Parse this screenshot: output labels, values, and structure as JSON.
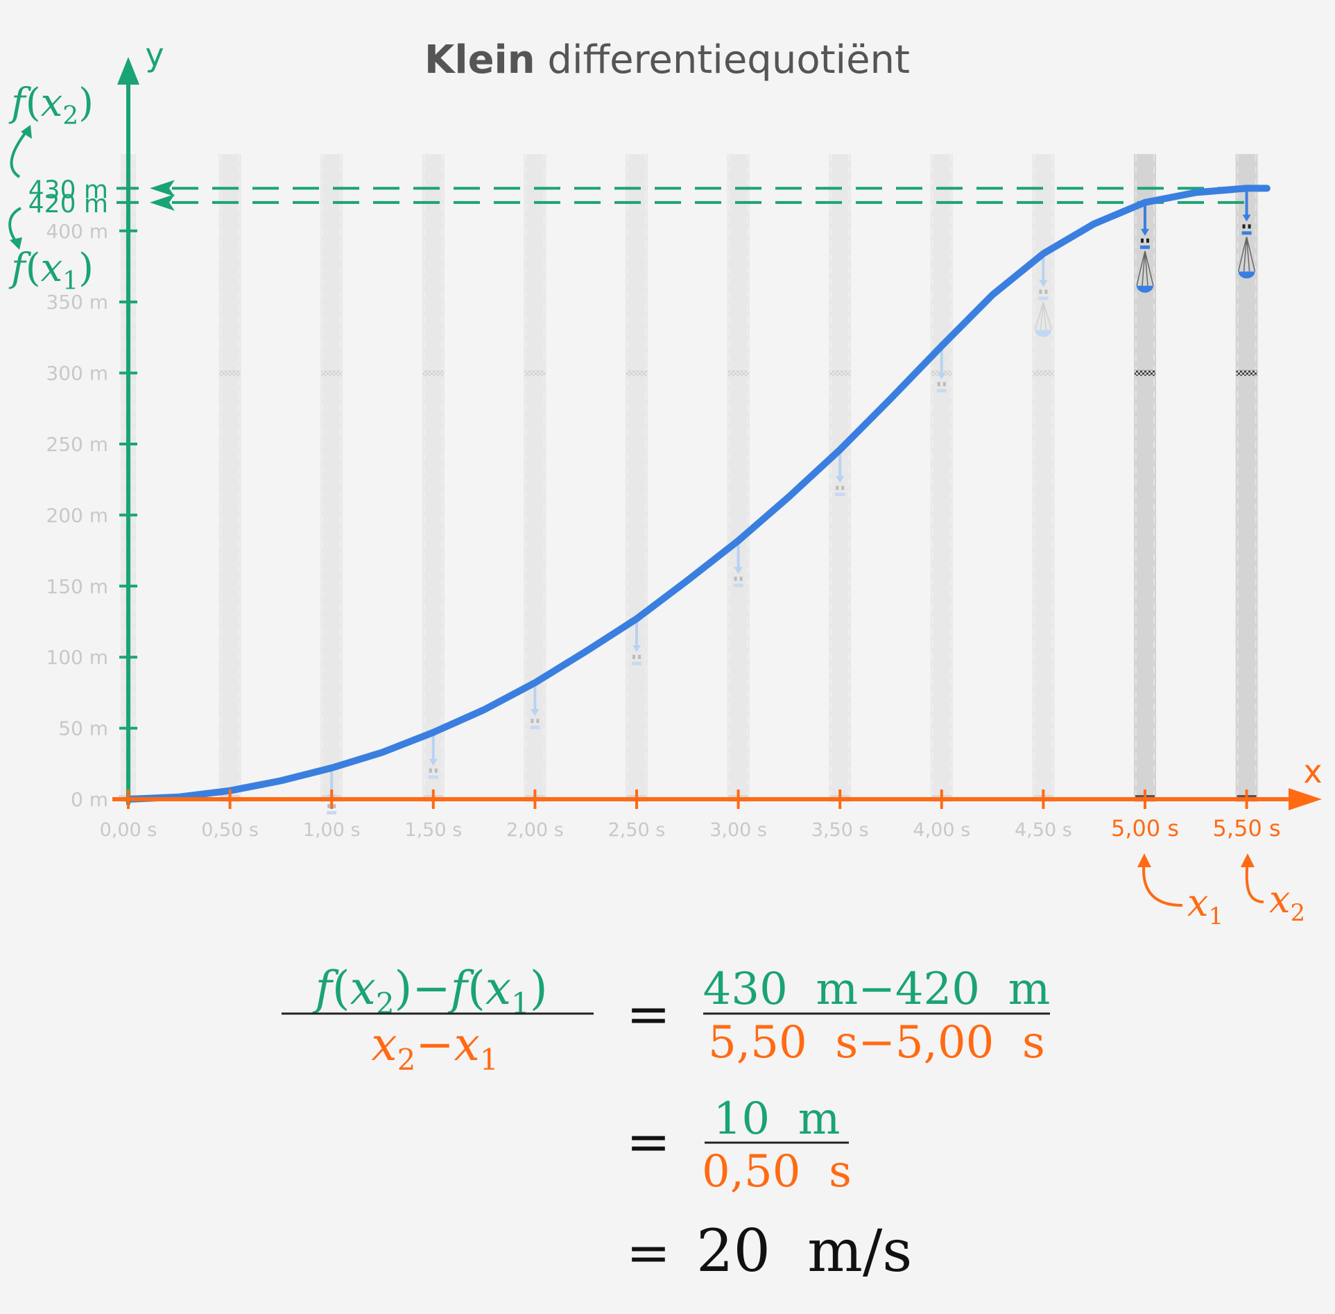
{
  "title": {
    "bold": "Klein",
    "rest": " differentiequotiënt"
  },
  "colors": {
    "green": "#1aa374",
    "orange": "#ff6a13",
    "blue": "#3a7fe0",
    "faded": "#c8c8c8",
    "black": "#111111"
  },
  "axes": {
    "x_label": "x",
    "y_label": "y"
  },
  "chart_data": {
    "type": "line",
    "title": "Klein differentiequotiënt",
    "xlabel": "x",
    "ylabel": "y",
    "xlim": [
      0,
      5.6
    ],
    "ylim": [
      0,
      430
    ],
    "x_ticks": [
      0,
      0.5,
      1.0,
      1.5,
      2.0,
      2.5,
      3.0,
      3.5,
      4.0,
      4.5,
      5.0,
      5.5
    ],
    "x_tick_labels": [
      "0,00 s",
      "0,50 s",
      "1,00 s",
      "1,50 s",
      "2,00 s",
      "2,50 s",
      "3,00 s",
      "3,50 s",
      "4,00 s",
      "4,50 s",
      "5,00 s",
      "5,50 s"
    ],
    "highlighted_x_ticks": [
      5.0,
      5.5
    ],
    "y_ticks": [
      0,
      50,
      100,
      150,
      200,
      250,
      300,
      350,
      400
    ],
    "y_tick_labels": [
      "0 m",
      "50 m",
      "100 m",
      "150 m",
      "200 m",
      "250 m",
      "300 m",
      "350 m",
      "400 m"
    ],
    "highlighted_y_values": [
      420,
      430
    ],
    "highlighted_y_labels": [
      "420 m",
      "430 m"
    ],
    "grid": false,
    "series": [
      {
        "x": [
          0,
          0.25,
          0.5,
          0.75,
          1.0,
          1.25,
          1.5,
          1.75,
          2.0,
          2.25,
          2.5,
          2.75,
          3.0,
          3.25,
          3.5,
          3.75,
          4.0,
          4.25,
          4.5,
          4.75,
          5.0,
          5.25,
          5.5,
          5.6
        ],
        "y": [
          0,
          1.6,
          6,
          13,
          22,
          33,
          47,
          63,
          82,
          104,
          127,
          154,
          182,
          213,
          246,
          282,
          319,
          355,
          384,
          405,
          420,
          427,
          430,
          430
        ]
      }
    ]
  },
  "callouts": {
    "fx2": {
      "f": "f",
      "open": "(",
      "x": "x",
      "sub": "2",
      "close": ")"
    },
    "fx1": {
      "f": "f",
      "open": "(",
      "x": "x",
      "sub": "1",
      "close": ")"
    },
    "x1": {
      "x": "x",
      "sub": "1"
    },
    "x2": {
      "x": "x",
      "sub": "2"
    }
  },
  "formula": {
    "lhs_num": {
      "f1": "f",
      "p1o": "(",
      "x1": "x",
      "s1": "2",
      "p1c": ")",
      "minus": "−",
      "f2": "f",
      "p2o": "(",
      "x2": "x",
      "s2": "1",
      "p2c": ")"
    },
    "lhs_den": {
      "xa": "x",
      "sa": "2",
      "minus": "−",
      "xb": "x",
      "sb": "1"
    },
    "equals": "=",
    "step1_num": {
      "a": "430  m",
      "minus": "−",
      "b": "420  m"
    },
    "step1_den": {
      "a": "5,50  s",
      "minus": "−",
      "b": "5,00  s"
    },
    "step2_num": "10  m",
    "step2_den": "0,50  s",
    "result": "20  m/s"
  }
}
